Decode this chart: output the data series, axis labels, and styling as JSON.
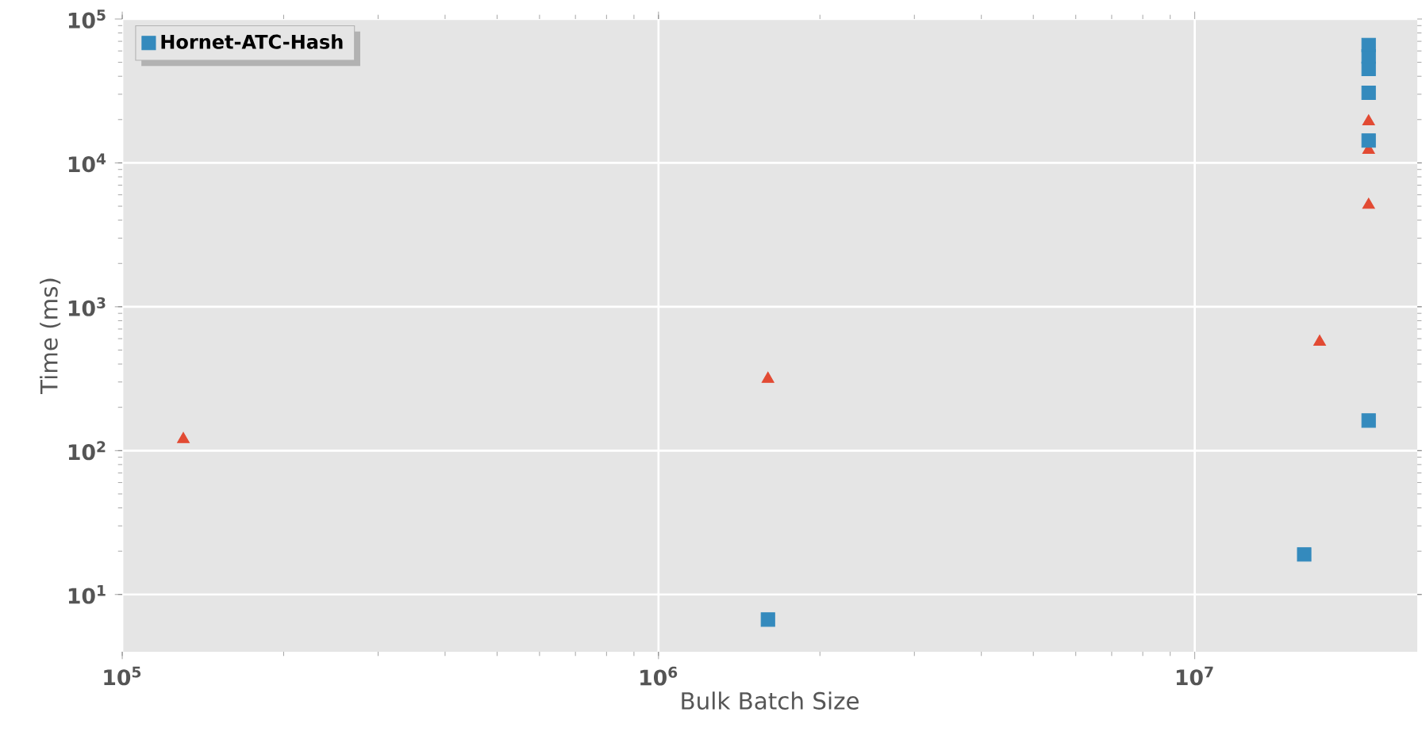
{
  "chart_data": {
    "type": "scatter",
    "xlabel": "Bulk Batch Size",
    "ylabel": "Time (ms)",
    "log": "xy",
    "grid": true,
    "legend": "top left",
    "xlim": [
      100000,
      26000000
    ],
    "ylim": [
      4,
      100000
    ],
    "xticks": [
      {
        "value": 100000,
        "label": "10$^{5}$"
      },
      {
        "value": 1000000,
        "label": "10$^{6}$"
      },
      {
        "value": 10000000,
        "label": "10$^{7}$"
      }
    ],
    "yticks": [
      {
        "value": 10,
        "label": "10$^{1}$"
      },
      {
        "value": 100,
        "label": "10$^{2}$"
      },
      {
        "value": 1000,
        "label": "10$^{3}$"
      },
      {
        "value": 10000,
        "label": "10$^{4}$"
      },
      {
        "value": 100000,
        "label": "10$^{5}$"
      }
    ],
    "series": [
      {
        "color": "#e24a33",
        "marker": "triangle",
        "x": [
          130000,
          1600000,
          17100000,
          21100000,
          21100000,
          21100000
        ],
        "values": [
          120,
          315,
          570,
          19400,
          12300,
          5100
        ]
      },
      {
        "name": "Hornet-ATC-Hash",
        "color": "#348abd",
        "marker": "square",
        "x": [
          1600000,
          16000000,
          21100000,
          21100000,
          21100000,
          21100000,
          21100000,
          21100000
        ],
        "values": [
          6.7,
          19,
          162,
          14300,
          30700,
          45000,
          55000,
          66000
        ]
      }
    ]
  }
}
